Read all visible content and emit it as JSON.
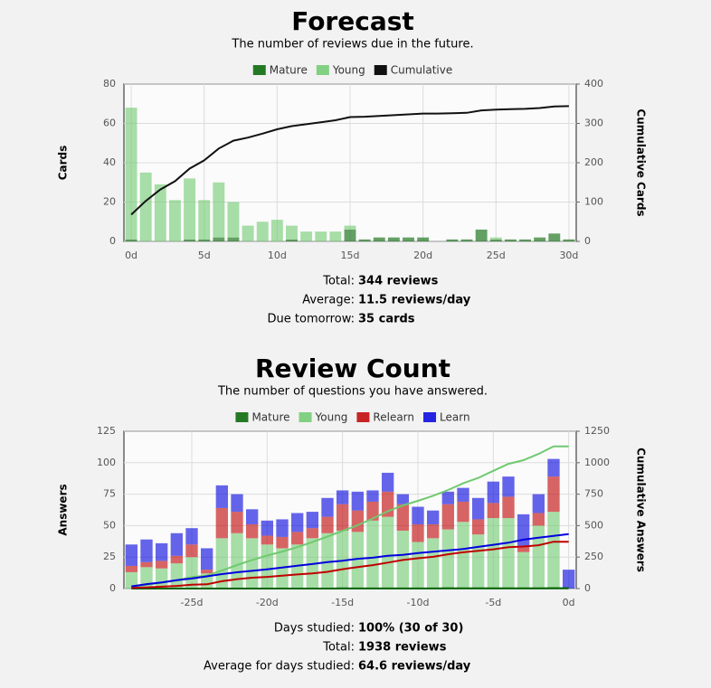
{
  "chart_data": [
    {
      "type": "bar",
      "title": "Forecast",
      "subtitle": "The number of reviews due in the future.",
      "ylabel": "Cards",
      "y2label": "Cumulative Cards",
      "x": [
        0,
        1,
        2,
        3,
        4,
        5,
        6,
        7,
        8,
        9,
        10,
        11,
        12,
        13,
        14,
        15,
        16,
        17,
        18,
        19,
        20,
        21,
        22,
        23,
        24,
        25,
        26,
        27,
        28,
        29,
        30
      ],
      "xlim": [
        -0.5,
        30.5
      ],
      "xticks": [
        {
          "value": 0,
          "label": "0d"
        },
        {
          "value": 5,
          "label": "5d"
        },
        {
          "value": 10,
          "label": "10d"
        },
        {
          "value": 15,
          "label": "15d"
        },
        {
          "value": 20,
          "label": "20d"
        },
        {
          "value": 25,
          "label": "25d"
        },
        {
          "value": 30,
          "label": "30d"
        }
      ],
      "ylim": [
        0,
        80
      ],
      "yticks": [
        0,
        20,
        40,
        60,
        80
      ],
      "y2lim": [
        0,
        400
      ],
      "y2ticks": [
        0,
        100,
        200,
        300,
        400
      ],
      "grid": true,
      "stacked": true,
      "series": [
        {
          "name": "Mature",
          "color": "#006400",
          "values": [
            1,
            0,
            0,
            0,
            1,
            1,
            2,
            2,
            0,
            0,
            0,
            1,
            0,
            0,
            0,
            6,
            1,
            2,
            2,
            2,
            2,
            0,
            1,
            1,
            6,
            1,
            1,
            1,
            2,
            4,
            1
          ]
        },
        {
          "name": "Young",
          "color": "#6fca6f",
          "values": [
            67,
            35,
            29,
            21,
            31,
            20,
            28,
            18,
            8,
            10,
            11,
            7,
            5,
            5,
            5,
            2,
            0,
            0,
            0,
            0,
            0,
            0,
            0,
            0,
            0,
            1,
            0,
            0,
            0,
            0,
            0
          ]
        },
        {
          "name": "Cumulative",
          "color": "#111111",
          "axis": "y2",
          "values": [
            68,
            103,
            132,
            153,
            185,
            206,
            236,
            256,
            264,
            274,
            285,
            293,
            298,
            303,
            308,
            316,
            317,
            319,
            321,
            323,
            325,
            325,
            326,
            327,
            333,
            335,
            336,
            337,
            339,
            343,
            344
          ]
        }
      ],
      "stats": [
        {
          "label": "Total:",
          "value": "344 reviews"
        },
        {
          "label": "Average:",
          "value": "11.5 reviews/day"
        },
        {
          "label": "Due tomorrow:",
          "value": "35 cards"
        }
      ]
    },
    {
      "type": "bar",
      "title": "Review Count",
      "subtitle": "The number of questions you have answered.",
      "ylabel": "Answers",
      "y2label": "Cumulative Answers",
      "x": [
        -29,
        -28,
        -27,
        -26,
        -25,
        -24,
        -23,
        -22,
        -21,
        -20,
        -19,
        -18,
        -17,
        -16,
        -15,
        -14,
        -13,
        -12,
        -11,
        -10,
        -9,
        -8,
        -7,
        -6,
        -5,
        -4,
        -3,
        -2,
        -1,
        0
      ],
      "xlim": [
        -29.5,
        0.5
      ],
      "xticks": [
        {
          "value": -25,
          "label": "-25d"
        },
        {
          "value": -20,
          "label": "-20d"
        },
        {
          "value": -15,
          "label": "-15d"
        },
        {
          "value": -10,
          "label": "-10d"
        },
        {
          "value": -5,
          "label": "-5d"
        },
        {
          "value": 0,
          "label": "0d"
        }
      ],
      "ylim": [
        0,
        125
      ],
      "yticks": [
        0,
        25,
        50,
        75,
        100,
        125
      ],
      "y2lim": [
        0,
        1250
      ],
      "y2ticks": [
        0,
        250,
        500,
        750,
        1000,
        1250
      ],
      "grid": true,
      "stacked": true,
      "series": [
        {
          "name": "Mature",
          "color": "#006400",
          "values": [
            0,
            0,
            0,
            0,
            0,
            0,
            0,
            0,
            0,
            0,
            0,
            0,
            0,
            0,
            1,
            0,
            0,
            0,
            0,
            0,
            0,
            1,
            0,
            0,
            0,
            0,
            0,
            0,
            1,
            0
          ],
          "cumulative": [
            0,
            0,
            0,
            0,
            0,
            0,
            0,
            0,
            0,
            0,
            0,
            0,
            0,
            0,
            1,
            1,
            1,
            1,
            1,
            1,
            1,
            2,
            2,
            2,
            2,
            2,
            2,
            2,
            3,
            3
          ]
        },
        {
          "name": "Young",
          "color": "#6fca6f",
          "values": [
            13,
            17,
            16,
            20,
            25,
            12,
            40,
            44,
            40,
            35,
            32,
            35,
            40,
            44,
            45,
            45,
            54,
            57,
            46,
            37,
            40,
            46,
            53,
            43,
            56,
            56,
            29,
            50,
            60,
            0
          ],
          "cumulative": [
            13,
            30,
            46,
            66,
            91,
            103,
            143,
            187,
            227,
            262,
            294,
            329,
            369,
            413,
            458,
            503,
            557,
            614,
            660,
            697,
            737,
            783,
            836,
            879,
            935,
            991,
            1020,
            1070,
            1130,
            1130
          ]
        },
        {
          "name": "Relearn",
          "color": "#c00000",
          "values": [
            5,
            4,
            6,
            6,
            10,
            3,
            24,
            17,
            11,
            7,
            9,
            10,
            8,
            13,
            21,
            17,
            15,
            20,
            21,
            14,
            11,
            20,
            16,
            12,
            12,
            17,
            5,
            10,
            28,
            0
          ],
          "cumulative": [
            5,
            9,
            15,
            21,
            31,
            34,
            58,
            75,
            86,
            93,
            102,
            112,
            120,
            133,
            154,
            171,
            186,
            206,
            227,
            241,
            252,
            272,
            288,
            300,
            312,
            329,
            334,
            344,
            372,
            372
          ]
        },
        {
          "name": "Learn",
          "color": "#0000e0",
          "values": [
            17,
            18,
            14,
            18,
            13,
            17,
            18,
            14,
            12,
            12,
            14,
            15,
            13,
            15,
            11,
            15,
            9,
            15,
            8,
            14,
            11,
            10,
            11,
            17,
            17,
            16,
            25,
            15,
            14,
            15
          ],
          "cumulative": [
            17,
            35,
            49,
            67,
            80,
            97,
            115,
            129,
            141,
            153,
            167,
            182,
            195,
            210,
            221,
            236,
            245,
            260,
            268,
            282,
            293,
            303,
            314,
            331,
            348,
            364,
            389,
            404,
            418,
            433
          ]
        }
      ],
      "stats": [
        {
          "label": "Days studied:",
          "value": "100% (30 of 30)"
        },
        {
          "label": "Total:",
          "value": "1938 reviews"
        },
        {
          "label": "Average for days studied:",
          "value": "64.6 reviews/day"
        }
      ]
    }
  ]
}
